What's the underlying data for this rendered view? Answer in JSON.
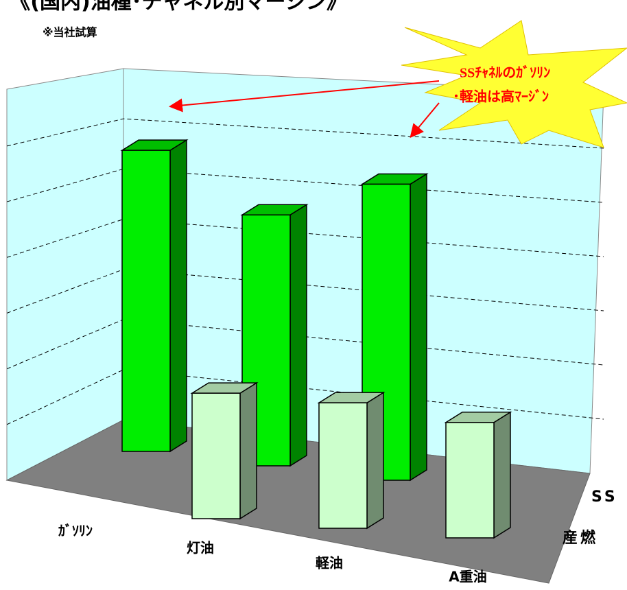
{
  "chart_data": {
    "type": "bar3d",
    "title": "《(国内)油種･チャネル別マージン》",
    "subtitle": "※当社試算",
    "annotation": [
      "SSﾁｬﾈﾙのｶﾞｿﾘﾝ",
      "･軽油は高ﾏｰｼﾞﾝ"
    ],
    "categories": [
      "ｶﾞｿﾘﾝ",
      "灯油",
      "軽油",
      "A重油"
    ],
    "series": [
      {
        "name": "SS",
        "color": "#00ee00",
        "values": [
          6.0,
          5.0,
          5.9,
          null
        ]
      },
      {
        "name": "産燃",
        "color": "#ccffcc",
        "values": [
          null,
          2.5,
          2.5,
          2.3
        ]
      }
    ],
    "ylim": [
      0,
      7
    ],
    "yticks": [
      1,
      2,
      3,
      4,
      5,
      6
    ],
    "grid": true
  }
}
